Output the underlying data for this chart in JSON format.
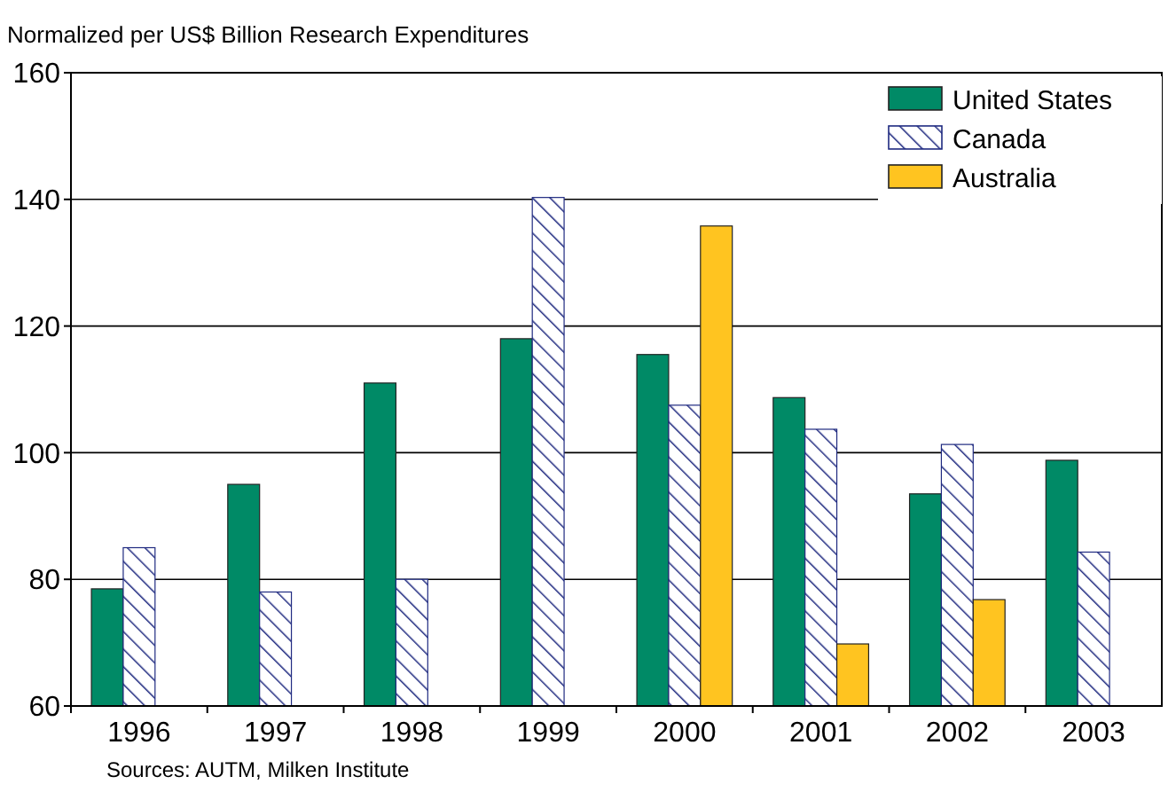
{
  "chart_data": {
    "type": "bar",
    "ylabel": "Normalized per US$ Billion Research Expenditures",
    "categories": [
      "1996",
      "1997",
      "1998",
      "1999",
      "2000",
      "2001",
      "2002",
      "2003"
    ],
    "series": [
      {
        "name": "United States",
        "color": "#008a66",
        "values": [
          78.5,
          95,
          111,
          118,
          115.5,
          108.7,
          93.5,
          98.8
        ]
      },
      {
        "name": "Canada",
        "color": "#1f2a80",
        "values": [
          85,
          78,
          80,
          140.3,
          107.5,
          103.7,
          101.3,
          84.3
        ]
      },
      {
        "name": "Australia",
        "color": "#ffc420",
        "values": [
          null,
          null,
          null,
          null,
          135.8,
          69.8,
          76.8,
          null
        ]
      }
    ],
    "ylim": [
      60,
      160
    ],
    "yticks": [
      60,
      80,
      100,
      120,
      140,
      160
    ],
    "grid": "y",
    "legend": "top right",
    "annotations": [
      "Sources: AUTM, Milken Institute"
    ]
  }
}
